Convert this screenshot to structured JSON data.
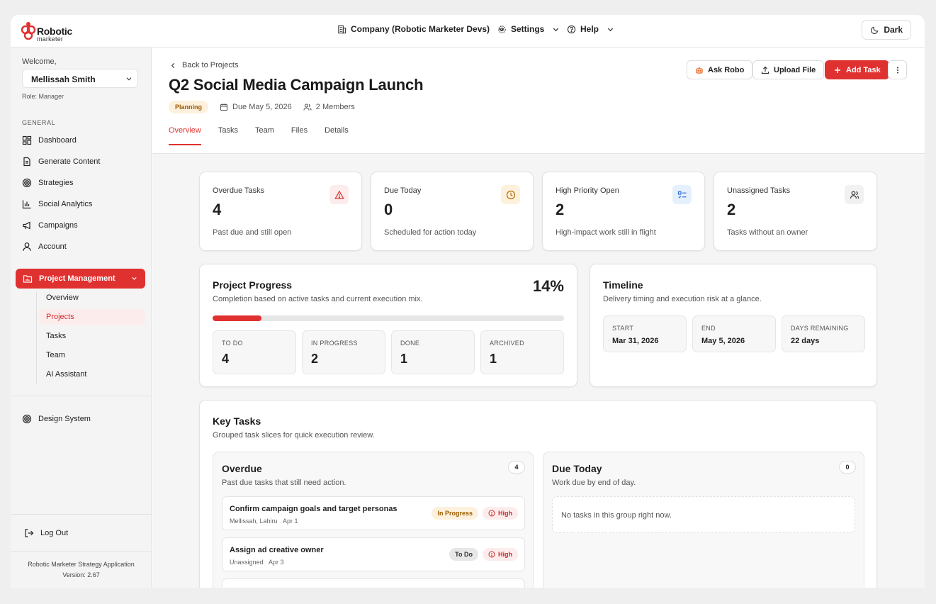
{
  "brand": {
    "word1": "Robotic",
    "word2": "marketer"
  },
  "topnav": {
    "company": "Company (Robotic Marketer Devs)",
    "settings": "Settings",
    "help": "Help",
    "theme": "Dark"
  },
  "sidebar": {
    "welcome": "Welcome,",
    "user": "Mellissah Smith",
    "role": "Role: Manager",
    "section": "GENERAL",
    "items": [
      {
        "label": "Dashboard",
        "icon": "dashboard-icon"
      },
      {
        "label": "Generate Content",
        "icon": "document-icon"
      },
      {
        "label": "Strategies",
        "icon": "target-icon"
      },
      {
        "label": "Social Analytics",
        "icon": "bar-chart-icon"
      },
      {
        "label": "Campaigns",
        "icon": "megaphone-icon"
      },
      {
        "label": "Account",
        "icon": "user-icon"
      }
    ],
    "project_management": "Project Management",
    "subitems": [
      "Overview",
      "Projects",
      "Tasks",
      "Team",
      "AI Assistant"
    ],
    "design_system": "Design System",
    "logout": "Log Out",
    "app_name": "Robotic Marketer Strategy Application",
    "version": "Version: 2.67"
  },
  "header": {
    "back": "Back to Projects",
    "title": "Q2 Social Media Campaign Launch",
    "status": "Planning",
    "due": "Due May 5, 2026",
    "members": "2 Members",
    "ask_robo": "Ask Robo",
    "upload": "Upload File",
    "add_task": "Add Task",
    "tabs": [
      "Overview",
      "Tasks",
      "Team",
      "Files",
      "Details"
    ]
  },
  "stats": [
    {
      "label": "Overdue Tasks",
      "value": "4",
      "desc": "Past due and still open",
      "icon": "alert-triangle-icon",
      "color": "#e03131",
      "bg": "#fdecec"
    },
    {
      "label": "Due Today",
      "value": "0",
      "desc": "Scheduled for action today",
      "icon": "clock-icon",
      "color": "#b86a00",
      "bg": "#fdf1dd"
    },
    {
      "label": "High Priority Open",
      "value": "2",
      "desc": "High-impact work still in flight",
      "icon": "list-check-icon",
      "color": "#2f6fd6",
      "bg": "#e6f0fd"
    },
    {
      "label": "Unassigned Tasks",
      "value": "2",
      "desc": "Tasks without an owner",
      "icon": "users-icon",
      "color": "#333333",
      "bg": "#f1f1f1"
    }
  ],
  "progress": {
    "title": "Project Progress",
    "subtitle": "Completion based on active tasks and current execution mix.",
    "percent_label": "14%",
    "percent": 14,
    "counts": [
      {
        "label": "TO DO",
        "value": "4"
      },
      {
        "label": "IN PROGRESS",
        "value": "2"
      },
      {
        "label": "DONE",
        "value": "1"
      },
      {
        "label": "ARCHIVED",
        "value": "1"
      }
    ]
  },
  "timeline": {
    "title": "Timeline",
    "subtitle": "Delivery timing and execution risk at a glance.",
    "cells": [
      {
        "label": "START",
        "value": "Mar 31, 2026"
      },
      {
        "label": "END",
        "value": "May 5, 2026"
      },
      {
        "label": "DAYS REMAINING",
        "value": "22 days"
      }
    ]
  },
  "key_tasks": {
    "title": "Key Tasks",
    "subtitle": "Grouped task slices for quick execution review.",
    "overdue": {
      "title": "Overdue",
      "subtitle": "Past due tasks that still need action.",
      "count": "4",
      "tasks": [
        {
          "name": "Confirm campaign goals and target personas",
          "meta": "Mellissah, Lahiru",
          "date": "Apr 1",
          "status": "In Progress",
          "priority": "High"
        },
        {
          "name": "Assign ad creative owner",
          "meta": "Unassigned",
          "date": "Apr 3",
          "status": "To Do",
          "priority": "High"
        }
      ]
    },
    "due_today": {
      "title": "Due Today",
      "subtitle": "Work due by end of day.",
      "count": "0",
      "empty": "No tasks in this group right now."
    }
  }
}
